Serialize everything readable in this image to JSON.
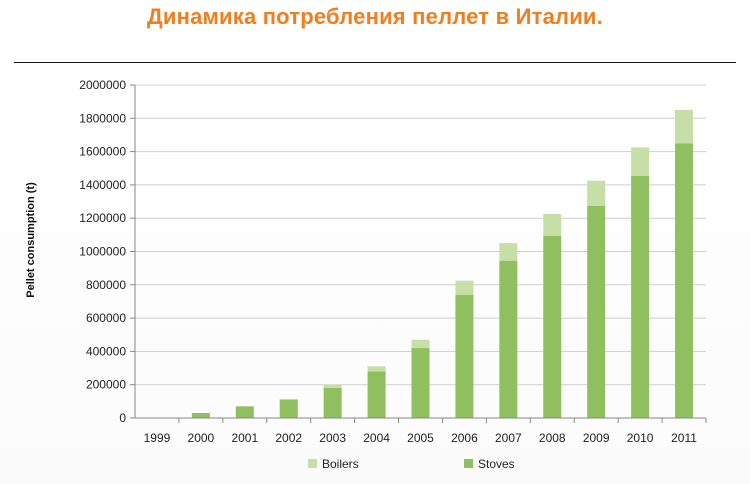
{
  "slide": {
    "title": "Динамика потребления пеллет в Италии."
  },
  "chart_data": {
    "type": "bar",
    "stacked": true,
    "categories": [
      "1999",
      "2000",
      "2001",
      "2002",
      "2003",
      "2004",
      "2005",
      "2006",
      "2007",
      "2008",
      "2009",
      "2010",
      "2011"
    ],
    "series": [
      {
        "name": "Stoves",
        "color": "#8FBF5E",
        "values": [
          0,
          30000,
          70000,
          110000,
          180000,
          280000,
          420000,
          740000,
          945000,
          1095000,
          1275000,
          1455000,
          1650000
        ]
      },
      {
        "name": "Boilers",
        "color": "#C5DFA6",
        "values": [
          0,
          0,
          0,
          5000,
          20000,
          30000,
          50000,
          85000,
          105000,
          130000,
          150000,
          170000,
          200000
        ]
      }
    ],
    "title": "",
    "xlabel": "",
    "ylabel": "Pellet consumption (t)",
    "ylim": [
      0,
      2000000
    ],
    "yticks": [
      0,
      200000,
      400000,
      600000,
      800000,
      1000000,
      1200000,
      1400000,
      1600000,
      1800000,
      2000000
    ],
    "grid": true,
    "legend_position": "bottom",
    "legend_order": [
      "Boilers",
      "Stoves"
    ]
  }
}
